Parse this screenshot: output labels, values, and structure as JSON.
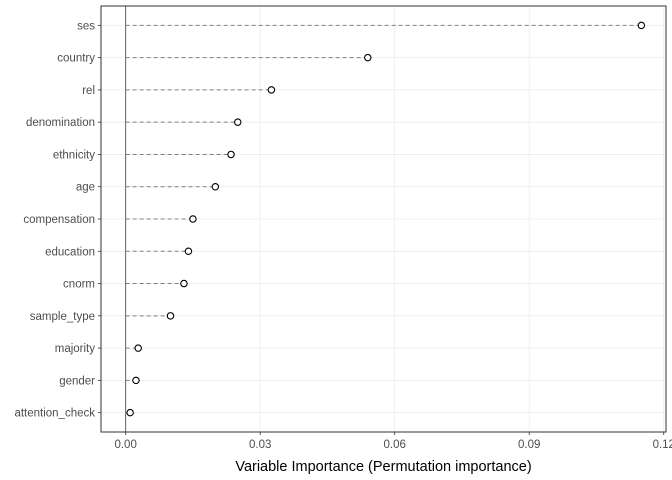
{
  "chart_data": {
    "type": "scatter",
    "style": "lollipop-dashed",
    "title": "",
    "xlabel": "Variable Importance (Permutation importance)",
    "ylabel": "",
    "xlim": [
      -0.0055,
      0.1205
    ],
    "xticks": [
      0.0,
      0.03,
      0.06,
      0.09,
      0.12
    ],
    "xtick_labels": [
      "0.00",
      "0.03",
      "0.06",
      "0.09",
      "0.12"
    ],
    "grid": true,
    "legend": "none",
    "categories": [
      "ses",
      "country",
      "rel",
      "denomination",
      "ethnicity",
      "age",
      "compensation",
      "education",
      "cnorm",
      "sample_type",
      "majority",
      "gender",
      "attention_check"
    ],
    "values": [
      0.115,
      0.054,
      0.0325,
      0.025,
      0.0235,
      0.02,
      0.015,
      0.014,
      0.013,
      0.01,
      0.0028,
      0.0023,
      0.001
    ],
    "baseline": 0.0
  }
}
